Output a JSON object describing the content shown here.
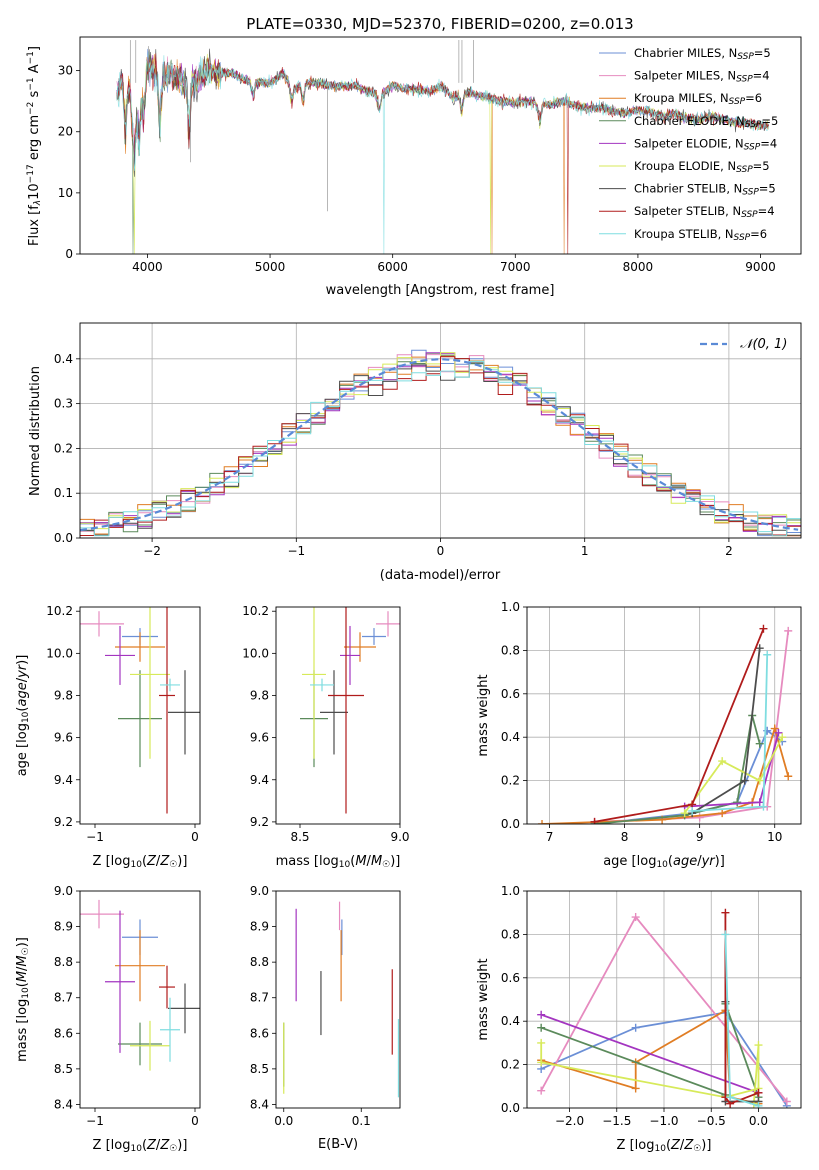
{
  "colors": {
    "Chabrier MILES": "#6b8fd6",
    "Salpeter MILES": "#e68bbf",
    "Kroupa MILES": "#e07d24",
    "Chabrier ELODIE": "#5b8a5b",
    "Salpeter ELODIE": "#a335c0",
    "Kroupa ELODIE": "#d7ea5a",
    "Chabrier STELIB": "#4d4d4d",
    "Salpeter STELIB": "#b01c1c",
    "Kroupa STELIB": "#7fdde0",
    "gauss": "#5a8ad6"
  },
  "chart_data": [
    {
      "id": "spectrum",
      "type": "line",
      "title": "PLATE=0330, MJD=52370, FIBERID=0200, z=0.013",
      "xlabel": "wavelength [Angstrom, rest frame]",
      "ylabel": "Flux [f_λ10^-17 erg cm^-2 s^-1 A^-1]",
      "xlim": [
        3450,
        9330
      ],
      "ylim": [
        0,
        35.5
      ],
      "xticks": [
        4000,
        5000,
        6000,
        7000,
        8000,
        9000
      ],
      "yticks": [
        0,
        10,
        20,
        30
      ],
      "legend_position": "top-right",
      "data_x": [
        3750,
        3800,
        3850,
        3900,
        3950,
        4000,
        4100,
        4200,
        4300,
        4400,
        4500,
        4600,
        4700,
        4800,
        4900,
        5000,
        5100,
        5200,
        5300,
        5400,
        5500,
        5600,
        5700,
        5800,
        5900,
        6000,
        6100,
        6200,
        6300,
        6400,
        6500,
        6600,
        6700,
        6800,
        6900,
        7000,
        7100,
        7200,
        7300,
        7400,
        7500,
        7600,
        7700,
        7800,
        7900,
        8000,
        8100,
        8200,
        8300,
        8400,
        8500,
        8600,
        8700,
        8800,
        8900,
        9000,
        9070
      ],
      "data_y": [
        26.5,
        29,
        27,
        22,
        28,
        31,
        29.5,
        29,
        28,
        28.5,
        30,
        29.5,
        29.5,
        28.5,
        28,
        28,
        29.5,
        27,
        28,
        28,
        27.5,
        27.5,
        27.5,
        26.5,
        26,
        27.5,
        27,
        27,
        26.5,
        27.5,
        25.5,
        26.5,
        26,
        25.5,
        25,
        24.8,
        25,
        24.5,
        24.5,
        25,
        24.2,
        23.8,
        24,
        23.5,
        23,
        23.5,
        23.3,
        22.5,
        23,
        22.2,
        22,
        22.5,
        22,
        21.5,
        21.5,
        21,
        21
      ],
      "series": [
        {
          "name": "Chabrier MILES, N_SSP=5",
          "label_main": "Chabrier MILES, N",
          "label_sub": "SSP",
          "label_tail": "=5"
        },
        {
          "name": "Salpeter MILES, N_SSP=4",
          "label_main": "Salpeter MILES, N",
          "label_sub": "SSP",
          "label_tail": "=4"
        },
        {
          "name": "Kroupa MILES, N_SSP=6",
          "label_main": "Kroupa MILES, N",
          "label_sub": "SSP",
          "label_tail": "=6"
        },
        {
          "name": "Chabrier ELODIE, N_SSP=5",
          "label_main": "Chabrier ELODIE, N",
          "label_sub": "SSP",
          "label_tail": "=5"
        },
        {
          "name": "Salpeter ELODIE, N_SSP=4",
          "label_main": "Salpeter ELODIE, N",
          "label_sub": "SSP",
          "label_tail": "=4"
        },
        {
          "name": "Kroupa ELODIE, N_SSP=5",
          "label_main": "Kroupa ELODIE, N",
          "label_sub": "SSP",
          "label_tail": "=5"
        },
        {
          "name": "Chabrier STELIB, N_SSP=5",
          "label_main": "Chabrier STELIB, N",
          "label_sub": "SSP",
          "label_tail": "=5"
        },
        {
          "name": "Salpeter STELIB, N_SSP=4",
          "label_main": "Salpeter STELIB, N",
          "label_sub": "SSP",
          "label_tail": "=4"
        },
        {
          "name": "Kroupa STELIB, N_SSP=6",
          "label_main": "Kroupa STELIB, N",
          "label_sub": "SSP",
          "label_tail": "=6"
        }
      ]
    },
    {
      "id": "residuals",
      "type": "histogram",
      "xlabel": "(data-model)/error",
      "ylabel": "Normed distribution",
      "xlim": [
        -2.5,
        2.5
      ],
      "ylim": [
        0,
        0.48
      ],
      "xticks": [
        -2,
        -1,
        0,
        1,
        2
      ],
      "yticks": [
        0.0,
        0.1,
        0.2,
        0.3,
        0.4
      ],
      "grid": true,
      "legend_position": "top-right",
      "gauss_label": "𝒩(0, 1)",
      "bin_width": 0.1,
      "bin_start": -2.5
    },
    {
      "id": "age_vs_Z",
      "type": "errorbar",
      "xlabel": "Z [log10(Z/Z☉)]",
      "ylabel": "age [log10(age/yr)]",
      "xlim": [
        -1.15,
        0.05
      ],
      "ylim": [
        9.19,
        10.22
      ],
      "xticks": [
        -1,
        0
      ],
      "yticks": [
        9.2,
        9.4,
        9.6,
        9.8,
        10.0,
        10.2
      ],
      "points": [
        {
          "series": "Chabrier MILES",
          "x": -0.55,
          "xerr": 0.18,
          "y": 10.08,
          "yerr": 0.04
        },
        {
          "series": "Salpeter MILES",
          "x": -0.96,
          "xerr": 0.25,
          "y": 10.14,
          "yerr": 0.06
        },
        {
          "series": "Kroupa MILES",
          "x": -0.55,
          "xerr": 0.25,
          "y": 10.03,
          "yerr": 0.07
        },
        {
          "series": "Chabrier ELODIE",
          "x": -0.55,
          "xerr": 0.22,
          "y": 9.69,
          "yerr": 0.23
        },
        {
          "series": "Salpeter ELODIE",
          "x": -0.75,
          "xerr": 0.15,
          "y": 9.99,
          "yerr": 0.14
        },
        {
          "series": "Kroupa ELODIE",
          "x": -0.45,
          "xerr": 0.2,
          "y": 9.9,
          "yerr": 0.4
        },
        {
          "series": "Chabrier STELIB",
          "x": -0.1,
          "xerr": 0.17,
          "y": 9.72,
          "yerr": 0.2
        },
        {
          "series": "Salpeter STELIB",
          "x": -0.28,
          "xerr": 0.08,
          "y": 9.8,
          "yerr": 0.56
        },
        {
          "series": "Kroupa STELIB",
          "x": -0.25,
          "xerr": 0.1,
          "y": 9.85,
          "yerr": 0.03
        }
      ]
    },
    {
      "id": "age_vs_mass",
      "type": "errorbar",
      "xlabel": "mass [log10(M/M☉)]",
      "ylabel": "",
      "xlim": [
        8.38,
        9.0
      ],
      "ylim": [
        9.19,
        10.22
      ],
      "xticks": [
        8.5,
        9.0
      ],
      "yticks": [
        9.2,
        9.4,
        9.6,
        9.8,
        10.0,
        10.2
      ],
      "points": [
        {
          "series": "Chabrier MILES",
          "x": 8.87,
          "xerr": 0.06,
          "y": 10.08,
          "yerr": 0.04
        },
        {
          "series": "Salpeter MILES",
          "x": 8.94,
          "xerr": 0.06,
          "y": 10.14,
          "yerr": 0.06
        },
        {
          "series": "Kroupa MILES",
          "x": 8.8,
          "xerr": 0.08,
          "y": 10.03,
          "yerr": 0.07
        },
        {
          "series": "Chabrier ELODIE",
          "x": 8.57,
          "xerr": 0.07,
          "y": 9.69,
          "yerr": 0.23
        },
        {
          "series": "Salpeter ELODIE",
          "x": 8.75,
          "xerr": 0.05,
          "y": 9.99,
          "yerr": 0.14
        },
        {
          "series": "Kroupa ELODIE",
          "x": 8.57,
          "xerr": 0.06,
          "y": 9.9,
          "yerr": 0.4
        },
        {
          "series": "Chabrier STELIB",
          "x": 8.67,
          "xerr": 0.07,
          "y": 9.72,
          "yerr": 0.2
        },
        {
          "series": "Salpeter STELIB",
          "x": 8.73,
          "xerr": 0.09,
          "y": 9.8,
          "yerr": 0.56
        },
        {
          "series": "Kroupa STELIB",
          "x": 8.61,
          "xerr": 0.06,
          "y": 9.85,
          "yerr": 0.03
        }
      ]
    },
    {
      "id": "massweight_vs_age",
      "type": "line",
      "xlabel": "age [log10(age/yr)]",
      "ylabel": "mass weight",
      "xlim": [
        6.7,
        10.35
      ],
      "ylim": [
        0,
        1.0
      ],
      "xticks": [
        7,
        8,
        9,
        10
      ],
      "yticks": [
        0.0,
        0.2,
        0.4,
        0.6,
        0.8,
        1.0
      ],
      "grid": true,
      "series": [
        {
          "name": "Chabrier MILES",
          "x": [
            7.6,
            8.9,
            9.5,
            9.9,
            10.1
          ],
          "y": [
            0.0,
            0.05,
            0.1,
            0.43,
            0.38
          ]
        },
        {
          "name": "Salpeter MILES",
          "x": [
            7.6,
            9.0,
            9.9,
            10.18
          ],
          "y": [
            0.01,
            0.03,
            0.08,
            0.89
          ]
        },
        {
          "name": "Kroupa MILES",
          "x": [
            6.9,
            8.5,
            9.3,
            9.7,
            10.0,
            10.18
          ],
          "y": [
            0.0,
            0.02,
            0.05,
            0.1,
            0.44,
            0.22
          ]
        },
        {
          "name": "Chabrier ELODIE",
          "x": [
            7.6,
            8.8,
            9.5,
            9.7,
            9.8
          ],
          "y": [
            0.0,
            0.04,
            0.1,
            0.5,
            0.37
          ]
        },
        {
          "name": "Salpeter ELODIE",
          "x": [
            8.8,
            9.8,
            10.05
          ],
          "y": [
            0.08,
            0.1,
            0.42
          ]
        },
        {
          "name": "Kroupa ELODIE",
          "x": [
            8.8,
            9.3,
            9.8,
            10.1
          ],
          "y": [
            0.05,
            0.29,
            0.2,
            0.4
          ]
        },
        {
          "name": "Chabrier STELIB",
          "x": [
            8.9,
            9.6,
            9.8
          ],
          "y": [
            0.05,
            0.2,
            0.81
          ]
        },
        {
          "name": "Salpeter STELIB",
          "x": [
            7.6,
            8.9,
            9.85
          ],
          "y": [
            0.01,
            0.09,
            0.9
          ]
        },
        {
          "name": "Kroupa STELIB",
          "x": [
            8.9,
            9.85,
            9.9
          ],
          "y": [
            0.06,
            0.08,
            0.78
          ]
        }
      ]
    },
    {
      "id": "mass_vs_Z",
      "type": "errorbar",
      "xlabel": "Z [log10(Z/Z☉)]",
      "ylabel": "mass [log10(M/M☉)]",
      "xlim": [
        -1.15,
        0.05
      ],
      "ylim": [
        8.39,
        9.0
      ],
      "xticks": [
        -1,
        0
      ],
      "yticks": [
        8.4,
        8.5,
        8.6,
        8.7,
        8.8,
        8.9,
        9.0
      ],
      "points": [
        {
          "series": "Chabrier MILES",
          "x": -0.55,
          "xerr": 0.18,
          "y": 8.87,
          "yerr": 0.05
        },
        {
          "series": "Salpeter MILES",
          "x": -0.96,
          "xerr": 0.25,
          "y": 8.935,
          "yerr": 0.04
        },
        {
          "series": "Kroupa MILES",
          "x": -0.55,
          "xerr": 0.25,
          "y": 8.79,
          "yerr": 0.1
        },
        {
          "series": "Chabrier ELODIE",
          "x": -0.55,
          "xerr": 0.22,
          "y": 8.57,
          "yerr": 0.06
        },
        {
          "series": "Salpeter ELODIE",
          "x": -0.75,
          "xerr": 0.15,
          "y": 8.745,
          "yerr": 0.2
        },
        {
          "series": "Kroupa ELODIE",
          "x": -0.45,
          "xerr": 0.2,
          "y": 8.565,
          "yerr": 0.07
        },
        {
          "series": "Chabrier STELIB",
          "x": -0.1,
          "xerr": 0.17,
          "y": 8.67,
          "yerr": 0.07
        },
        {
          "series": "Salpeter STELIB",
          "x": -0.28,
          "xerr": 0.08,
          "y": 8.73,
          "yerr": 0.06
        },
        {
          "series": "Kroupa STELIB",
          "x": -0.25,
          "xerr": 0.1,
          "y": 8.61,
          "yerr": 0.09
        }
      ]
    },
    {
      "id": "mass_vs_EBV",
      "type": "errorbar",
      "xlabel": "E(B-V)",
      "ylabel": "",
      "xlim": [
        -0.01,
        0.15
      ],
      "ylim": [
        8.39,
        9.0
      ],
      "xticks": [
        0.0,
        0.1
      ],
      "yticks": [
        8.4,
        8.5,
        8.6,
        8.7,
        8.8,
        8.9,
        9.0
      ],
      "points": [
        {
          "series": "Chabrier MILES",
          "x": 0.075,
          "xerr": 0,
          "y": 8.87,
          "yerr": 0.05
        },
        {
          "series": "Salpeter MILES",
          "x": 0.072,
          "xerr": 0,
          "y": 8.93,
          "yerr": 0.04
        },
        {
          "series": "Kroupa MILES",
          "x": 0.074,
          "xerr": 0,
          "y": 8.79,
          "yerr": 0.1
        },
        {
          "series": "Chabrier ELODIE",
          "x": 0.0,
          "xerr": 0,
          "y": 8.54,
          "yerr": 0.09
        },
        {
          "series": "Salpeter ELODIE",
          "x": 0.016,
          "xerr": 0,
          "y": 8.82,
          "yerr": 0.13
        },
        {
          "series": "Kroupa ELODIE",
          "x": 0.0,
          "xerr": 0,
          "y": 8.53,
          "yerr": 0.1
        },
        {
          "series": "Chabrier STELIB",
          "x": 0.048,
          "xerr": 0,
          "y": 8.685,
          "yerr": 0.09
        },
        {
          "series": "Salpeter STELIB",
          "x": 0.14,
          "xerr": 0,
          "y": 8.66,
          "yerr": 0.12
        },
        {
          "series": "Kroupa STELIB",
          "x": 0.148,
          "xerr": 0,
          "y": 8.53,
          "yerr": 0.11
        }
      ]
    },
    {
      "id": "massweight_vs_Z",
      "type": "line",
      "xlabel": "Z [log10(Z/Z☉)]",
      "ylabel": "mass weight",
      "xlim": [
        -2.45,
        0.45
      ],
      "ylim": [
        0,
        1.0
      ],
      "xticks": [
        -2.0,
        -1.5,
        -1.0,
        -0.5,
        0.0
      ],
      "yticks": [
        0.0,
        0.2,
        0.4,
        0.6,
        0.8,
        1.0
      ],
      "grid": true,
      "series": [
        {
          "name": "Chabrier MILES",
          "x": [
            -2.3,
            -1.3,
            -0.35,
            0.3
          ],
          "y": [
            0.18,
            0.37,
            0.44,
            0.01
          ]
        },
        {
          "name": "Salpeter MILES",
          "x": [
            -2.3,
            -1.3,
            0.3
          ],
          "y": [
            0.08,
            0.88,
            0.03
          ]
        },
        {
          "name": "Kroupa MILES",
          "x": [
            -2.3,
            -1.3,
            -1.3,
            -0.35,
            -0.3,
            0.0
          ],
          "y": [
            0.22,
            0.09,
            0.21,
            0.45,
            0.05,
            0.02
          ]
        },
        {
          "name": "Chabrier ELODIE",
          "x": [
            -2.3,
            -0.35,
            -0.35,
            0.0
          ],
          "y": [
            0.37,
            0.06,
            0.48,
            0.05
          ]
        },
        {
          "name": "Salpeter ELODIE",
          "x": [
            -2.3,
            0.0
          ],
          "y": [
            0.43,
            0.07
          ]
        },
        {
          "name": "Kroupa ELODIE",
          "x": [
            -2.3,
            -2.3,
            -0.35,
            0.0,
            0.0,
            -0.05
          ],
          "y": [
            0.3,
            0.21,
            0.05,
            0.09,
            0.29,
            0.02
          ]
        },
        {
          "name": "Chabrier STELIB",
          "x": [
            -0.35,
            -0.35,
            0.0
          ],
          "y": [
            0.49,
            0.03,
            0.03
          ]
        },
        {
          "name": "Salpeter STELIB",
          "x": [
            -0.35,
            -0.35,
            -0.3,
            0.0
          ],
          "y": [
            0.9,
            0.05,
            0.02,
            0.07
          ]
        },
        {
          "name": "Kroupa STELIB",
          "x": [
            -0.35,
            -0.3,
            0.0
          ],
          "y": [
            0.8,
            0.05,
            0.01
          ]
        }
      ]
    }
  ]
}
